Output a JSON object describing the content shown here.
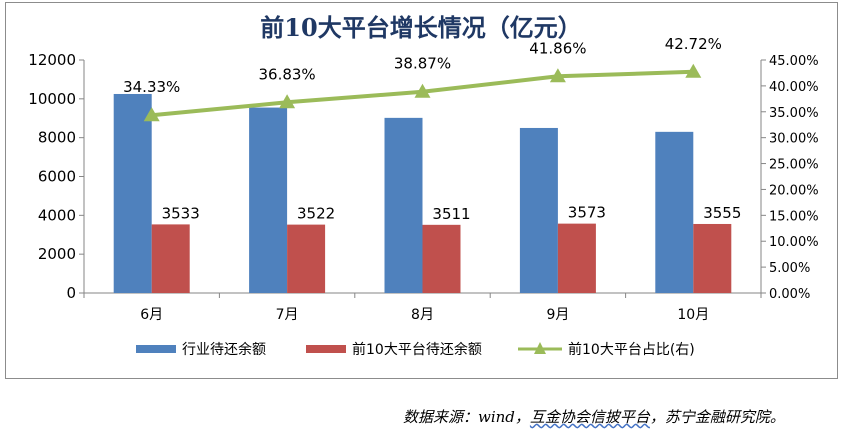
{
  "chart_data": {
    "type": "bar",
    "title": "前10大平台增长情况（亿元）",
    "categories": [
      "6月",
      "7月",
      "8月",
      "9月",
      "10月"
    ],
    "series": [
      {
        "name": "行业待还余额",
        "kind": "bar",
        "axis": "left",
        "color": "#4f81bd",
        "values": [
          10250,
          9550,
          9020,
          8500,
          8300
        ],
        "labels": []
      },
      {
        "name": "前10大平台待还余额",
        "kind": "bar",
        "axis": "left",
        "color": "#c0504d",
        "values": [
          3533,
          3522,
          3511,
          3573,
          3555
        ],
        "labels": [
          "3533",
          "3522",
          "3511",
          "3573",
          "3555"
        ]
      },
      {
        "name": "前10大平台占比(右)",
        "kind": "line",
        "axis": "right",
        "color": "#9bbb59",
        "values": [
          34.33,
          36.83,
          38.87,
          41.86,
          42.72
        ],
        "labels": [
          "34.33%",
          "36.83%",
          "38.87%",
          "41.86%",
          "42.72%"
        ]
      }
    ],
    "y_left": {
      "min": 0,
      "max": 12000,
      "step": 2000,
      "ticks": [
        "0",
        "2000",
        "4000",
        "6000",
        "8000",
        "10000",
        "12000"
      ]
    },
    "y_right": {
      "min": 0,
      "max": 45,
      "step": 5,
      "ticks": [
        "0.00%",
        "5.00%",
        "10.00%",
        "15.00%",
        "20.00%",
        "25.00%",
        "30.00%",
        "35.00%",
        "40.00%",
        "45.00%"
      ]
    },
    "grid": false,
    "legend": "bottom"
  },
  "source_note": {
    "prefix": "数据来源：wind，",
    "underlined": "互金协会信披平台",
    "suffix": "，苏宁金融研究院。"
  }
}
